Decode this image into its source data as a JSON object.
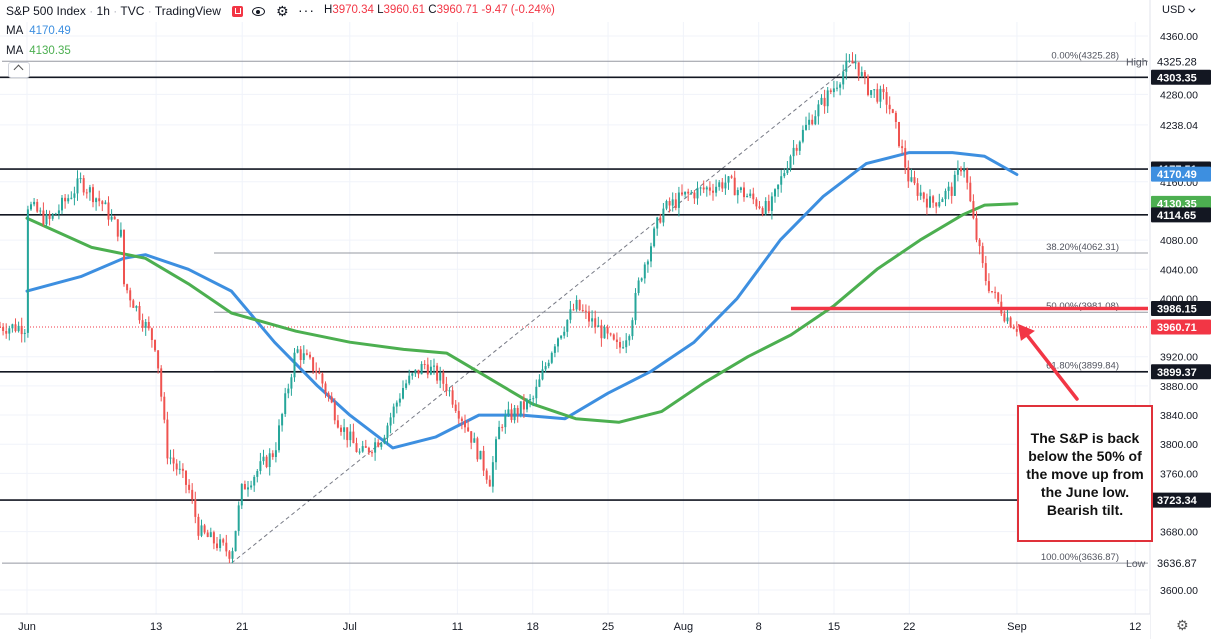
{
  "header": {
    "symbol": "S&P 500 Index",
    "interval": "1h",
    "source": "TVC",
    "brand": "TradingView",
    "ohlc": [
      {
        "k": "H",
        "v": "3970.34"
      },
      {
        "k": "L",
        "v": "3960.61"
      },
      {
        "k": "C",
        "v": "3960.71"
      },
      {
        "k": "",
        "v": "-9.47 (-0.24%)"
      }
    ]
  },
  "indicators": [
    {
      "label": "MA",
      "value": "4170.49",
      "color": "#3d8fe0"
    },
    {
      "label": "MA",
      "value": "4130.35",
      "color": "#4caf50"
    }
  ],
  "currency": "USD",
  "annotation_text": "The S&P is back below the 50% of the move up from the June low.  Bearish tilt.",
  "chart_data": {
    "type": "candlestick",
    "x_tick_labels": [
      "Jun",
      "13",
      "21",
      "Jul",
      "11",
      "18",
      "25",
      "Aug",
      "8",
      "15",
      "22",
      "Sep",
      "12"
    ],
    "y_tick_labels": [
      "4360.00",
      "4280.00",
      "4238.04",
      "4160.00",
      "4080.00",
      "4040.00",
      "4000.00",
      "3920.00",
      "3880.00",
      "3840.00",
      "3800.00",
      "3760.00",
      "3680.00",
      "3600.00"
    ],
    "y_tick_values": [
      4360,
      4280,
      4238.04,
      4160,
      4080,
      4040,
      4000,
      3920,
      3880,
      3840,
      3800,
      3760,
      3680,
      3600
    ],
    "ylim": [
      3580,
      4390
    ],
    "price_path": [
      {
        "d": "Jun 1",
        "p": 4130
      },
      {
        "d": "Jun 3",
        "p": 4105
      },
      {
        "d": "Jun 6",
        "p": 4160
      },
      {
        "d": "Jun 8",
        "p": 4130
      },
      {
        "d": "Jun 10",
        "p": 4080
      },
      {
        "d": "Jun 10",
        "p": 4020
      },
      {
        "d": "Jun 13",
        "p": 3935
      },
      {
        "d": "Jun 14",
        "p": 3790
      },
      {
        "d": "Jun 16",
        "p": 3740
      },
      {
        "d": "Jun 17",
        "p": 3680
      },
      {
        "d": "Jun 20",
        "p": 3650
      },
      {
        "d": "Jun 21",
        "p": 3740
      },
      {
        "d": "Jun 24",
        "p": 3790
      },
      {
        "d": "Jun 26",
        "p": 3930
      },
      {
        "d": "Jun 28",
        "p": 3900
      },
      {
        "d": "Jun 30",
        "p": 3830
      },
      {
        "d": "Jul 2",
        "p": 3785
      },
      {
        "d": "Jul 4",
        "p": 3810
      },
      {
        "d": "Jul 6",
        "p": 3880
      },
      {
        "d": "Jul 8",
        "p": 3910
      },
      {
        "d": "Jul 10",
        "p": 3880
      },
      {
        "d": "Jul 12",
        "p": 3820
      },
      {
        "d": "Jul 14",
        "p": 3750
      },
      {
        "d": "Jul 15",
        "p": 3830
      },
      {
        "d": "Jul 18",
        "p": 3860
      },
      {
        "d": "Jul 20",
        "p": 3940
      },
      {
        "d": "Jul 22",
        "p": 3990
      },
      {
        "d": "Jul 24",
        "p": 3960
      },
      {
        "d": "Jul 26",
        "p": 3930
      },
      {
        "d": "Jul 27",
        "p": 3960
      },
      {
        "d": "Jul 28",
        "p": 4030
      },
      {
        "d": "Jul 30",
        "p": 4120
      },
      {
        "d": "Aug 1",
        "p": 4140
      },
      {
        "d": "Aug 3",
        "p": 4150
      },
      {
        "d": "Aug 5",
        "p": 4160
      },
      {
        "d": "Aug 7",
        "p": 4140
      },
      {
        "d": "Aug 9",
        "p": 4120
      },
      {
        "d": "Aug 11",
        "p": 4200
      },
      {
        "d": "Aug 13",
        "p": 4250
      },
      {
        "d": "Aug 15",
        "p": 4290
      },
      {
        "d": "Aug 16",
        "p": 4315
      },
      {
        "d": "Aug 17",
        "p": 4325
      },
      {
        "d": "Aug 18",
        "p": 4290
      },
      {
        "d": "Aug 20",
        "p": 4270
      },
      {
        "d": "Aug 21",
        "p": 4220
      },
      {
        "d": "Aug 22",
        "p": 4160
      },
      {
        "d": "Aug 24",
        "p": 4130
      },
      {
        "d": "Aug 26",
        "p": 4150
      },
      {
        "d": "Aug 27",
        "p": 4190
      },
      {
        "d": "Aug 28",
        "p": 4100
      },
      {
        "d": "Aug 29",
        "p": 4030
      },
      {
        "d": "Aug 30",
        "p": 4000
      },
      {
        "d": "Aug 31",
        "p": 3975
      },
      {
        "d": "Sep 1",
        "p": 3961
      }
    ],
    "moving_averages": [
      {
        "name": "MA 4170.49",
        "color": "#3d8fe0",
        "points": [
          {
            "d": "Jun 1",
            "p": 4010
          },
          {
            "d": "Jun 6",
            "p": 4030
          },
          {
            "d": "Jun 10",
            "p": 4055
          },
          {
            "d": "Jun 12",
            "p": 4060
          },
          {
            "d": "Jun 16",
            "p": 4040
          },
          {
            "d": "Jun 20",
            "p": 4010
          },
          {
            "d": "Jun 24",
            "p": 3940
          },
          {
            "d": "Jun 28",
            "p": 3880
          },
          {
            "d": "Jul 1",
            "p": 3840
          },
          {
            "d": "Jul 5",
            "p": 3795
          },
          {
            "d": "Jul 9",
            "p": 3810
          },
          {
            "d": "Jul 13",
            "p": 3840
          },
          {
            "d": "Jul 17",
            "p": 3840
          },
          {
            "d": "Jul 21",
            "p": 3835
          },
          {
            "d": "Jul 25",
            "p": 3870
          },
          {
            "d": "Jul 29",
            "p": 3900
          },
          {
            "d": "Aug 2",
            "p": 3940
          },
          {
            "d": "Aug 6",
            "p": 4000
          },
          {
            "d": "Aug 10",
            "p": 4080
          },
          {
            "d": "Aug 14",
            "p": 4140
          },
          {
            "d": "Aug 18",
            "p": 4185
          },
          {
            "d": "Aug 22",
            "p": 4200
          },
          {
            "d": "Aug 26",
            "p": 4200
          },
          {
            "d": "Aug 29",
            "p": 4195
          },
          {
            "d": "Sep 1",
            "p": 4170
          }
        ]
      },
      {
        "name": "MA 4130.35",
        "color": "#4caf50",
        "points": [
          {
            "d": "Jun 1",
            "p": 4110
          },
          {
            "d": "Jun 7",
            "p": 4070
          },
          {
            "d": "Jun 12",
            "p": 4055
          },
          {
            "d": "Jun 16",
            "p": 4020
          },
          {
            "d": "Jun 20",
            "p": 3980
          },
          {
            "d": "Jun 26",
            "p": 3955
          },
          {
            "d": "Jul 1",
            "p": 3940
          },
          {
            "d": "Jul 6",
            "p": 3930
          },
          {
            "d": "Jul 10",
            "p": 3925
          },
          {
            "d": "Jul 14",
            "p": 3890
          },
          {
            "d": "Jul 18",
            "p": 3855
          },
          {
            "d": "Jul 22",
            "p": 3835
          },
          {
            "d": "Jul 26",
            "p": 3830
          },
          {
            "d": "Jul 30",
            "p": 3845
          },
          {
            "d": "Aug 3",
            "p": 3885
          },
          {
            "d": "Aug 7",
            "p": 3920
          },
          {
            "d": "Aug 11",
            "p": 3950
          },
          {
            "d": "Aug 15",
            "p": 3990
          },
          {
            "d": "Aug 19",
            "p": 4040
          },
          {
            "d": "Aug 23",
            "p": 4080
          },
          {
            "d": "Aug 27",
            "p": 4115
          },
          {
            "d": "Aug 29",
            "p": 4128
          },
          {
            "d": "Sep 1",
            "p": 4130
          }
        ]
      }
    ],
    "horizontal_levels": [
      {
        "value": 4303.35,
        "label": "4303.35"
      },
      {
        "value": 4177.51,
        "label": "4177.51"
      },
      {
        "value": 4114.65,
        "label": "4114.65"
      },
      {
        "value": 3899.37,
        "label": "3899.37"
      },
      {
        "value": 3723.34,
        "label": "3723.34"
      }
    ],
    "fib_levels": [
      {
        "value": 4325.28,
        "label": "0.00%(4325.28)",
        "tag": "High"
      },
      {
        "value": 4062.31,
        "label": "38.20%(4062.31)",
        "tag": ""
      },
      {
        "value": 3981.08,
        "label": "50.00%(3981.08)",
        "tag": ""
      },
      {
        "value": 3899.84,
        "label": "61.80%(3899.84)",
        "tag": ""
      },
      {
        "value": 3636.87,
        "label": "100.00%(3636.87)",
        "tag": "Low"
      }
    ],
    "axis_badges": [
      {
        "value": 4325.28,
        "label": "4325.28",
        "style": "plain"
      },
      {
        "value": 4303.35,
        "label": "4303.35",
        "style": "dark"
      },
      {
        "value": 4177.51,
        "label": "4177.51",
        "style": "dark"
      },
      {
        "value": 4170.49,
        "label": "4170.49",
        "style": "blue"
      },
      {
        "value": 4130.35,
        "label": "4130.35",
        "style": "green"
      },
      {
        "value": 4114.65,
        "label": "4114.65",
        "style": "dark"
      },
      {
        "value": 3986.15,
        "label": "3986.15",
        "style": "dark"
      },
      {
        "value": 3960.71,
        "label": "3960.71",
        "style": "red"
      },
      {
        "value": 3899.37,
        "label": "3899.37",
        "style": "dark"
      },
      {
        "value": 3723.34,
        "label": "3723.34",
        "style": "dark"
      },
      {
        "value": 3636.87,
        "label": "3636.87",
        "style": "plain"
      }
    ],
    "drawn_line": {
      "value": 3986.15,
      "from": "Aug 11",
      "to": "Sep 1",
      "color": "#f23645"
    },
    "last_price": 3960.71,
    "colors": {
      "up": "#26a69a",
      "down": "#ef5350",
      "grid": "#f0f3fa",
      "level": "#131722",
      "fib": "#9598a1"
    }
  }
}
